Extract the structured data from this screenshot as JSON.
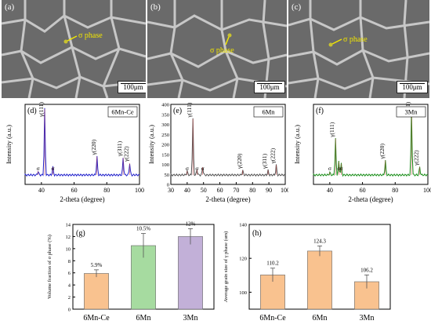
{
  "micrographs": [
    {
      "panel": "(a)",
      "annotation": "σ phase",
      "scale": "100μm"
    },
    {
      "panel": "(b)",
      "annotation": "σ phase",
      "scale": "100μm"
    },
    {
      "panel": "(c)",
      "annotation": "σ phase",
      "scale": "100μm"
    }
  ],
  "colors": {
    "blue": "#2222cc",
    "gray": "#555555",
    "green": "#1b8f1b",
    "peak": "#d04040",
    "orange": "#f9c28f",
    "lightgreen": "#a6dba0",
    "purple": "#c2b0d8"
  },
  "chart_data": [
    {
      "type": "line",
      "panel": "(d)",
      "legend": "6Mn-Ce",
      "xlabel": "2-theta (degree)",
      "ylabel": "Intensity (a.u.)",
      "xlim": [
        30,
        100
      ],
      "xticks": [
        40,
        60,
        80,
        100
      ],
      "peaks": [
        {
          "x": 38,
          "h": 0.06,
          "label": "σ"
        },
        {
          "x": 42,
          "h": 1.0,
          "label": "γ(111)"
        },
        {
          "x": 47,
          "h": 0.12,
          "label": "σ"
        },
        {
          "x": 74,
          "h": 0.28,
          "label": "γ(220)"
        },
        {
          "x": 90,
          "h": 0.26,
          "label": "γ(311)"
        },
        {
          "x": 94,
          "h": 0.18,
          "label": "γ(222)"
        }
      ]
    },
    {
      "type": "line",
      "panel": "(e)",
      "legend": "6Mn",
      "xlabel": "2-theta (degree)",
      "ylabel": "Intensity (a.u.)",
      "xlim": [
        30,
        100
      ],
      "xticks": [
        30,
        40,
        50,
        60,
        70,
        80,
        90,
        100
      ],
      "yticks": [
        0,
        50,
        100,
        150,
        200,
        250,
        300,
        350,
        400
      ],
      "peaks": [
        {
          "x": 40,
          "h": 0.06,
          "label": "σ"
        },
        {
          "x": 43.5,
          "h": 0.85,
          "label": "γ(111)"
        },
        {
          "x": 46,
          "h": 0.08,
          "label": "σ"
        },
        {
          "x": 49.5,
          "h": 0.12,
          "label": "σ"
        },
        {
          "x": 74,
          "h": 0.07,
          "label": "γ(220)"
        },
        {
          "x": 89.5,
          "h": 0.07,
          "label": "γ(311)"
        },
        {
          "x": 94.5,
          "h": 0.15,
          "label": "γ(222)"
        }
      ]
    },
    {
      "type": "line",
      "panel": "(f)",
      "legend": "3Mn",
      "xlabel": "2-theta (degree)",
      "ylabel": "Intensity (a.u.)",
      "xlim": [
        30,
        100
      ],
      "xticks": [
        40,
        60,
        80,
        100
      ],
      "peaks": [
        {
          "x": 40,
          "h": 0.04,
          "label": "σ"
        },
        {
          "x": 43.5,
          "h": 0.55,
          "label": "γ(111)"
        },
        {
          "x": 45.5,
          "h": 0.2,
          "label": "σ"
        },
        {
          "x": 47,
          "h": 0.17,
          "label": "σ"
        },
        {
          "x": 74,
          "h": 0.22,
          "label": "γ(220)"
        },
        {
          "x": 90,
          "h": 1.0,
          "label": "γ(311)"
        },
        {
          "x": 95,
          "h": 0.12,
          "label": "γ(222)"
        }
      ]
    },
    {
      "type": "bar",
      "panel": "(g)",
      "ylabel": "Volume fraction of σ phase (%)",
      "categories": [
        "6Mn-Ce",
        "6Mn",
        "3Mn"
      ],
      "values": [
        5.9,
        10.5,
        12
      ],
      "value_labels": [
        "5.9%",
        "10.5%",
        "12%"
      ],
      "errors": [
        0.6,
        2.0,
        1.3
      ],
      "ylim": [
        0,
        14
      ],
      "yticks": [
        0,
        2,
        4,
        6,
        8,
        10,
        12,
        14
      ]
    },
    {
      "type": "bar",
      "panel": "(h)",
      "ylabel": "Average grain size of γ phase (um)",
      "categories": [
        "6Mn-Ce",
        "6Mn",
        "3Mn"
      ],
      "values": [
        110.2,
        124.3,
        106.2
      ],
      "value_labels": [
        "110.2",
        "124.3",
        "106.2"
      ],
      "errors": [
        4,
        3,
        4
      ],
      "ylim": [
        90,
        140
      ],
      "yticks": [
        100,
        120,
        140
      ]
    }
  ]
}
